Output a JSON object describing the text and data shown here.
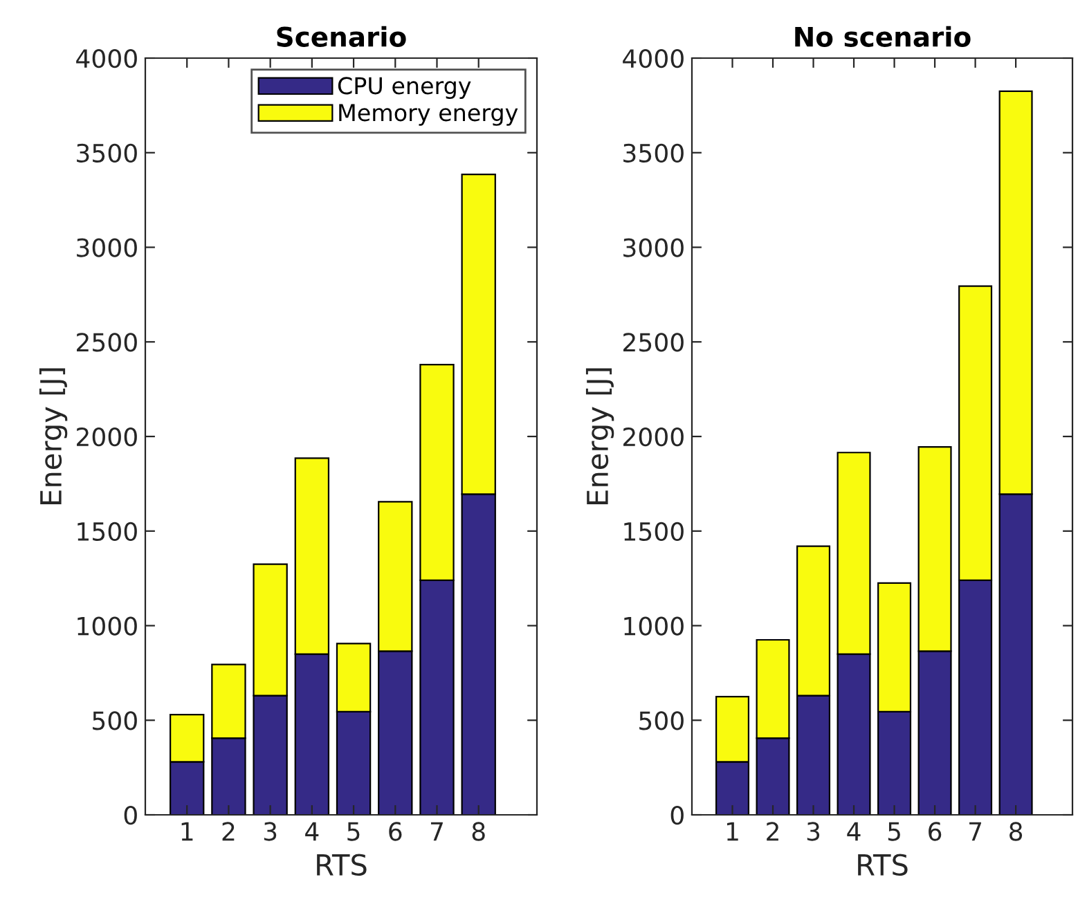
{
  "chart_data": [
    {
      "type": "bar",
      "title": "Scenario",
      "xlabel": "RTS",
      "ylabel": "Energy [J]",
      "stacked": true,
      "categories": [
        "1",
        "2",
        "3",
        "4",
        "5",
        "6",
        "7",
        "8"
      ],
      "series": [
        {
          "name": "CPU energy",
          "color": "#352a87",
          "values": [
            280,
            405,
            630,
            850,
            545,
            865,
            1240,
            1695
          ]
        },
        {
          "name": "Memory energy",
          "color": "#f9fb0e",
          "values": [
            250,
            390,
            695,
            1035,
            360,
            790,
            1140,
            1690
          ]
        }
      ],
      "ylim": [
        0,
        4000
      ],
      "yticks": [
        0,
        500,
        1000,
        1500,
        2000,
        2500,
        3000,
        3500,
        4000
      ],
      "grid": false,
      "legend": "top right"
    },
    {
      "type": "bar",
      "title": "No scenario",
      "xlabel": "RTS",
      "ylabel": "Energy [J]",
      "stacked": true,
      "categories": [
        "1",
        "2",
        "3",
        "4",
        "5",
        "6",
        "7",
        "8"
      ],
      "series": [
        {
          "color": "#352a87",
          "values": [
            280,
            405,
            630,
            850,
            545,
            865,
            1240,
            1695
          ]
        },
        {
          "color": "#f9fb0e",
          "values": [
            345,
            520,
            790,
            1065,
            680,
            1080,
            1555,
            2130
          ]
        }
      ],
      "ylim": [
        0,
        4000
      ],
      "yticks": [
        0,
        500,
        1000,
        1500,
        2000,
        2500,
        3000,
        3500,
        4000
      ],
      "grid": false
    }
  ]
}
